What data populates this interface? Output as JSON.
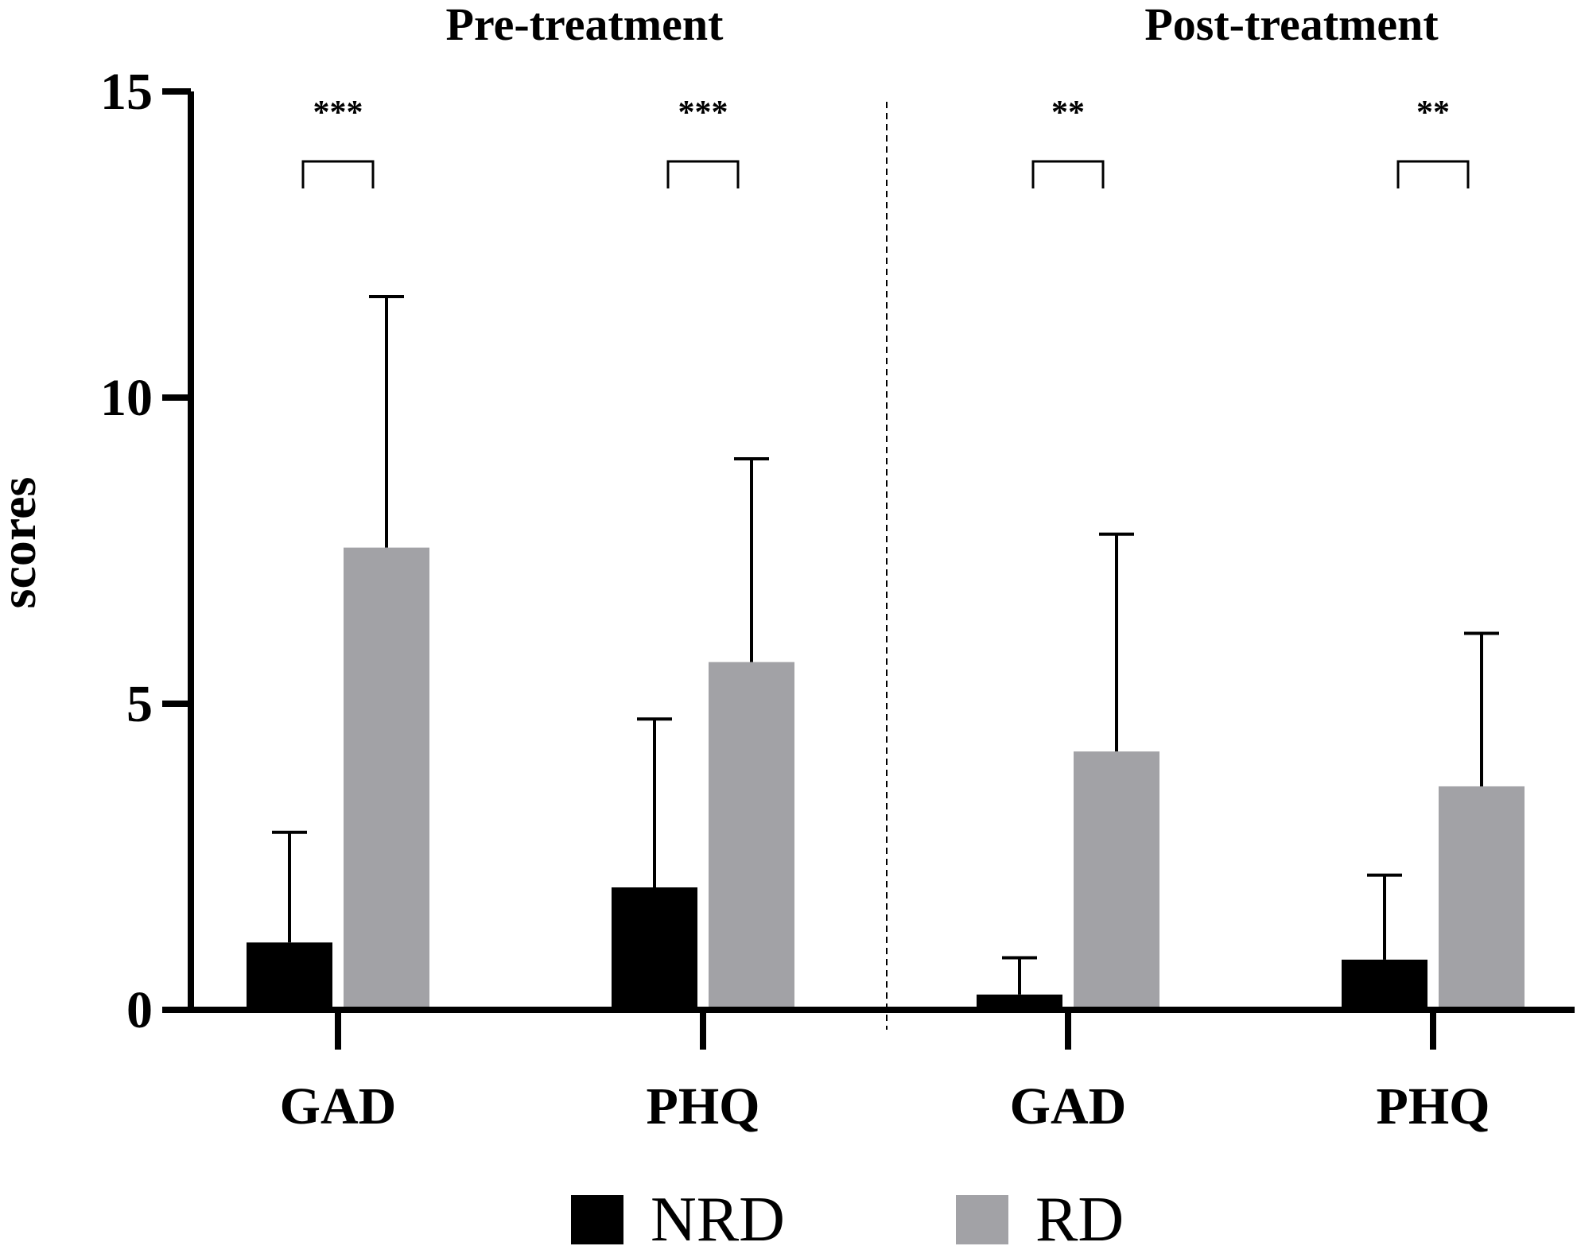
{
  "chart_data": {
    "type": "bar",
    "panels": [
      {
        "title": "Pre-treatment",
        "categories": [
          "GAD",
          "PHQ"
        ]
      },
      {
        "title": "Post-treatment",
        "categories": [
          "GAD",
          "PHQ"
        ]
      }
    ],
    "series": [
      {
        "name": "NRD",
        "color": "#000000",
        "values": [
          1.1,
          2.0,
          0.25,
          0.82
        ],
        "error": [
          1.8,
          2.75,
          0.6,
          1.38
        ]
      },
      {
        "name": "RD",
        "color": "#a2a2a6",
        "values": [
          7.55,
          5.68,
          4.22,
          3.65
        ],
        "error": [
          4.1,
          3.32,
          3.55,
          2.5
        ]
      }
    ],
    "significance": [
      "***",
      "***",
      "**",
      "**"
    ],
    "ylabel": "scores",
    "ylim": [
      0,
      15
    ],
    "yticks": [
      0,
      5,
      10,
      15
    ],
    "legend": {
      "position": "bottom"
    }
  }
}
